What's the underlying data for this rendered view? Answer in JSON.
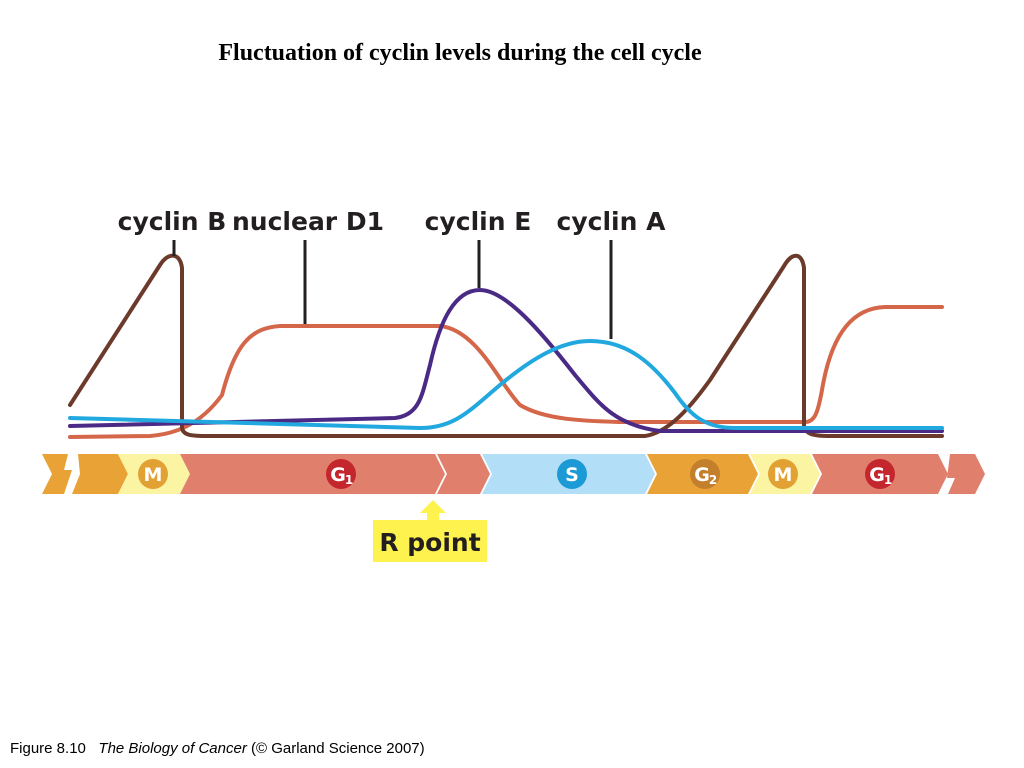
{
  "title": "Fluctuation of cyclin levels during the cell cycle",
  "curves": {
    "cyclin_b": {
      "label": "cyclin B",
      "color": "#6b3a2a"
    },
    "nuclear_d1": {
      "label": "nuclear D1",
      "color": "#d4664a"
    },
    "cyclin_e": {
      "label": "cyclin E",
      "color": "#4b2a86"
    },
    "cyclin_a": {
      "label": "cyclin A",
      "color": "#21a8df"
    }
  },
  "phases": [
    {
      "name": "M",
      "letter": "M",
      "sub": ""
    },
    {
      "name": "G1",
      "letter": "G",
      "sub": "1"
    },
    {
      "name": "S",
      "letter": "S",
      "sub": ""
    },
    {
      "name": "G2",
      "letter": "G",
      "sub": "2"
    },
    {
      "name": "M",
      "letter": "M",
      "sub": ""
    },
    {
      "name": "G1",
      "letter": "G",
      "sub": "1"
    }
  ],
  "colors": {
    "m_phase": "#fbf4a3",
    "g1_phase": "#e07f6c",
    "s_phase": "#b3def7",
    "g2_phase": "#e9a236",
    "m_badge": "#e2a233",
    "g_badge": "#c4262e",
    "s_badge": "#1b9ad6",
    "g2_badge": "#c47f2d",
    "r_point_box": "#fdf24e"
  },
  "r_point": {
    "label": "R point"
  },
  "caption": {
    "figure": "Figure 8.10",
    "book": "The Biology of Cancer",
    "credit": "(© Garland Science 2007)"
  }
}
